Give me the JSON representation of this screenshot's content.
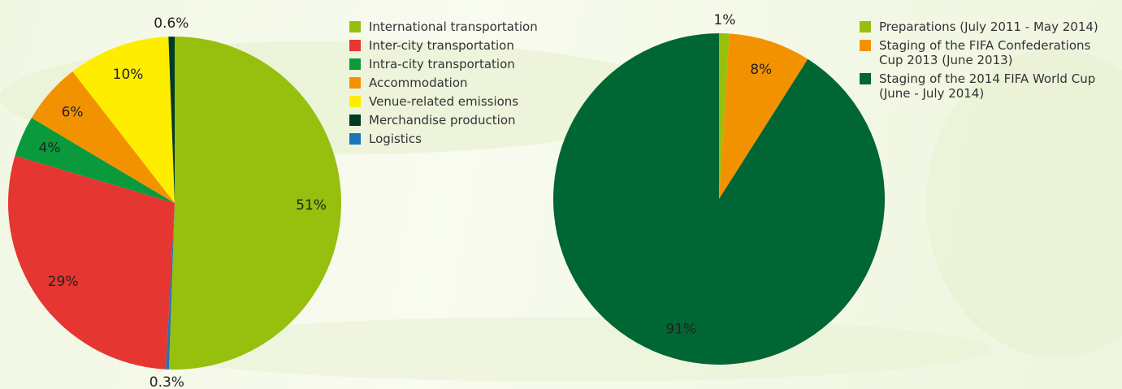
{
  "chart_data": [
    {
      "type": "pie",
      "categories": [
        "International transportation",
        "Inter-city transportation",
        "Intra-city transportation",
        "Accommodation",
        "Venue-related emissions",
        "Merchandise production",
        "Logistics"
      ],
      "values": [
        51,
        29,
        4,
        6,
        10,
        0.6,
        0.3
      ],
      "value_labels": [
        "51%",
        "29%",
        "4%",
        "6%",
        "10%",
        "0.6%",
        "0.3%"
      ],
      "colors": [
        "#97bf0d",
        "#e63632",
        "#0a9a3c",
        "#f39200",
        "#ffed00",
        "#003b23",
        "#1a75bb"
      ]
    },
    {
      "type": "pie",
      "categories": [
        "Preparations (July 2011 - May 2014)",
        "Staging of the FIFA Confederations Cup 2013 (June 2013)",
        "Staging of the 2014 FIFA World Cup (June - July 2014)"
      ],
      "values": [
        1,
        8,
        91
      ],
      "value_labels": [
        "1%",
        "8%",
        "91%"
      ],
      "colors": [
        "#97bf0d",
        "#f39200",
        "#006633"
      ]
    }
  ]
}
